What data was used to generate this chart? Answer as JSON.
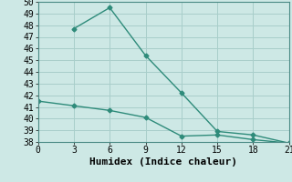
{
  "xlabel": "Humidex (Indice chaleur)",
  "x_ticks": [
    0,
    3,
    6,
    9,
    12,
    15,
    18,
    21
  ],
  "ylim": [
    38,
    50
  ],
  "xlim": [
    0,
    21
  ],
  "y_ticks": [
    38,
    39,
    40,
    41,
    42,
    43,
    44,
    45,
    46,
    47,
    48,
    49,
    50
  ],
  "line1_x": [
    0,
    3,
    6,
    9,
    12,
    15,
    18,
    21
  ],
  "line1_y": [
    41.5,
    41.1,
    40.7,
    40.1,
    38.5,
    38.6,
    38.2,
    37.9
  ],
  "line2_x": [
    3,
    6,
    9,
    12,
    15,
    18,
    21
  ],
  "line2_y": [
    47.7,
    49.5,
    45.4,
    42.2,
    38.9,
    38.6,
    37.9
  ],
  "line_color": "#2e8b7a",
  "bg_color": "#cde8e5",
  "grid_color": "#a8ceca",
  "marker": "D",
  "marker_size": 2.5,
  "linewidth": 1.0,
  "font_family": "monospace",
  "xlabel_fontsize": 8,
  "tick_fontsize": 7
}
